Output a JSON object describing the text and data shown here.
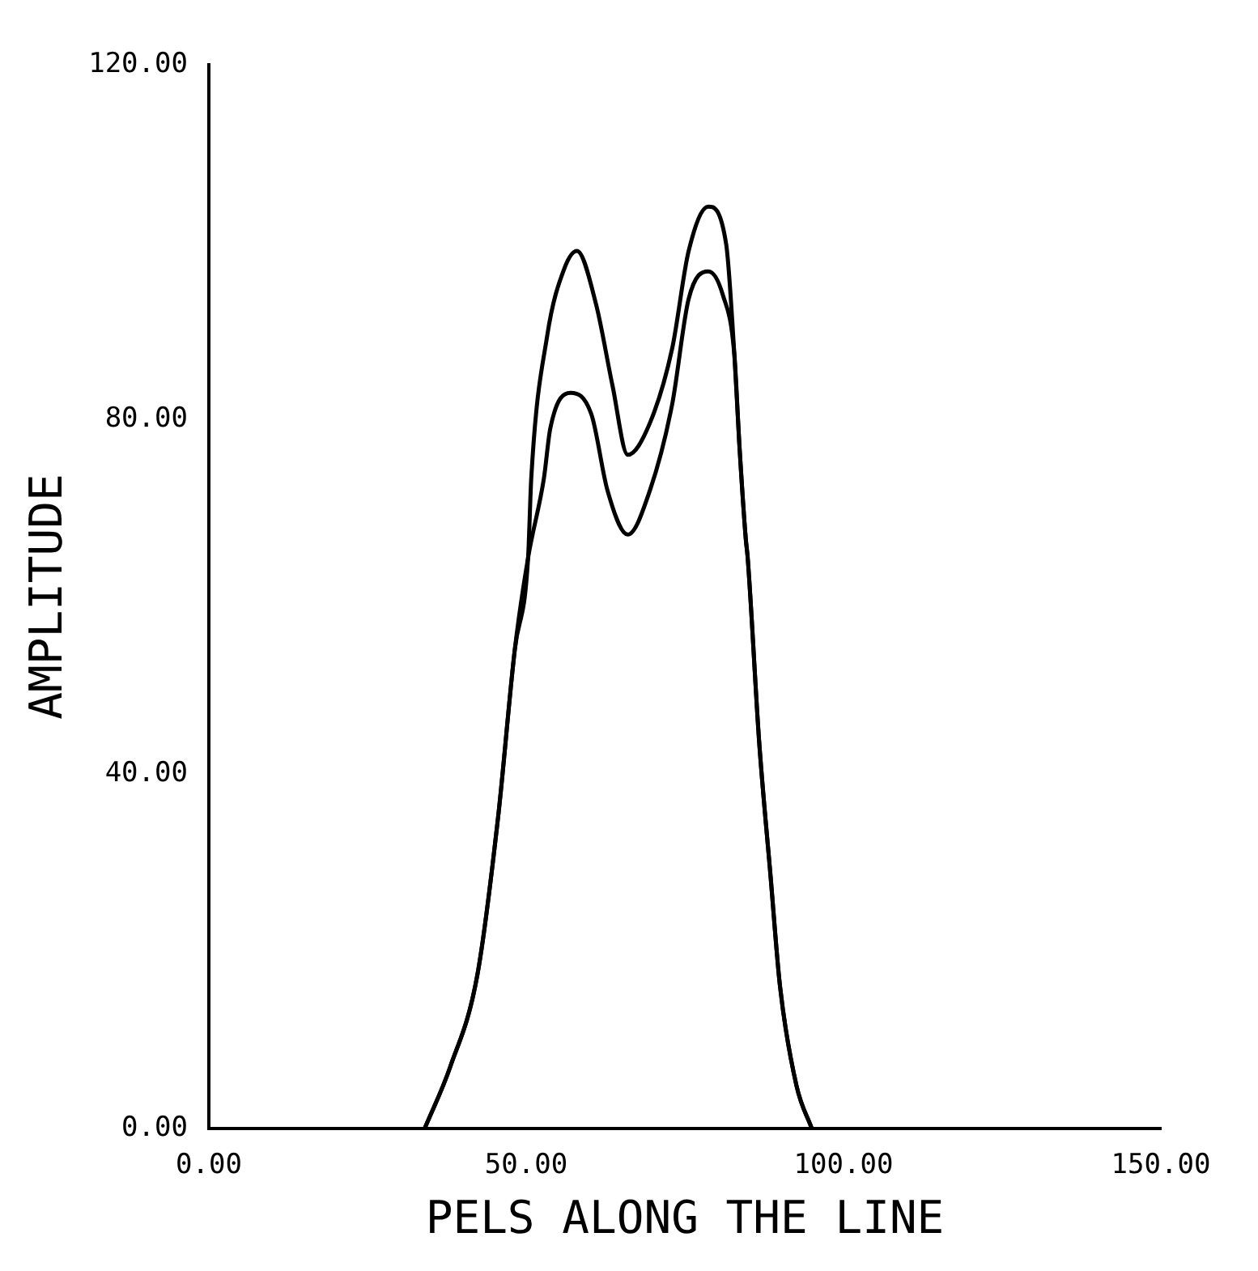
{
  "chart_data": {
    "type": "line",
    "xlabel": "PELS ALONG THE LINE",
    "ylabel": "AMPLITUDE",
    "xlim": [
      0,
      150
    ],
    "ylim": [
      0,
      120
    ],
    "xticks": [
      {
        "value": 0,
        "label": "0.00"
      },
      {
        "value": 50,
        "label": "50.00"
      },
      {
        "value": 100,
        "label": "100.00"
      },
      {
        "value": 150,
        "label": "150.00"
      }
    ],
    "yticks": [
      {
        "value": 0,
        "label": "0.00"
      },
      {
        "value": 40,
        "label": "40.00"
      },
      {
        "value": 80,
        "label": "80.00"
      },
      {
        "value": 120,
        "label": "120.00"
      }
    ],
    "grid": false,
    "legend": false,
    "marker": "none",
    "line_style": "solid",
    "series": [
      {
        "color": "#000000",
        "x": [
          34,
          38,
          42.3,
          45.6,
          48.2,
          50.3,
          50.8,
          53.3,
          56,
          58,
          61,
          63.6,
          66,
          69.5,
          73,
          75.6,
          78.7,
          81.5,
          82.8,
          83.6,
          84.6,
          84.9,
          86.7,
          88.5,
          90,
          92.6,
          95
        ],
        "values": [
          0,
          6.9,
          17.3,
          35.3,
          54,
          64.4,
          73.4,
          89.4,
          97,
          99,
          93,
          83.8,
          76,
          79.6,
          88,
          99,
          104,
          99.8,
          87.3,
          77,
          66.5,
          64.4,
          43.7,
          28.5,
          16,
          4.8,
          0
        ]
      },
      {
        "color": "#000000",
        "x": [
          34,
          38,
          42.3,
          45.6,
          48.2,
          50.3,
          52.8,
          53.8,
          57,
          60.3,
          62.8,
          66,
          69.5,
          73,
          75.6,
          78.7,
          81,
          82.8,
          83.6,
          84.6,
          84.9,
          86.7,
          88.5,
          90,
          92.6,
          95
        ],
        "values": [
          0,
          6.9,
          17.3,
          35.3,
          54,
          64.4,
          73.4,
          79,
          83,
          80.5,
          72,
          67,
          72,
          81.7,
          93.6,
          96.7,
          94,
          87.3,
          77,
          66.5,
          64.4,
          43.7,
          28.5,
          16,
          4.8,
          0
        ]
      }
    ]
  }
}
